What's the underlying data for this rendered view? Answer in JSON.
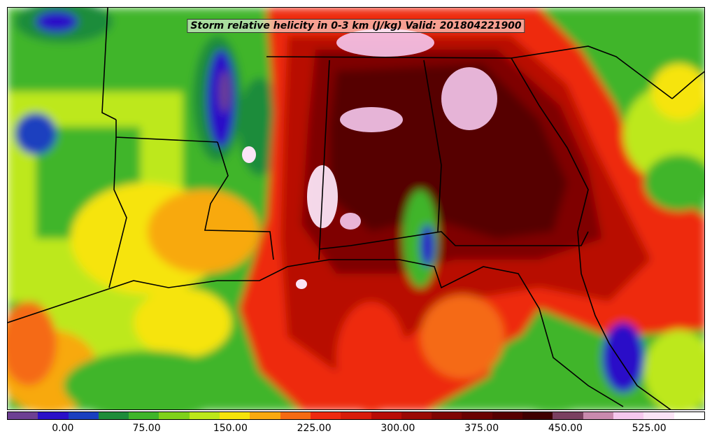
{
  "title": "Storm relative helicity in 0-3 km (J/kg) Valid: 201804221900",
  "colorbar": {
    "colors": [
      "#6d3f93",
      "#2a10c8",
      "#1a3fbf",
      "#1e8c3a",
      "#3fb52a",
      "#7fd11a",
      "#bde81a",
      "#f6e40a",
      "#f8a90f",
      "#f56a12",
      "#ee2a10",
      "#d81c0a",
      "#b80d06",
      "#9a0a05",
      "#7f0503",
      "#6a0202",
      "#560000",
      "#3f0000",
      "#7a4060",
      "#c98aae",
      "#f6c8ee",
      "#fbe4f6",
      "#ffffff"
    ],
    "tick_labels": [
      "0.00",
      "75.00",
      "150.00",
      "225.00",
      "300.00",
      "375.00",
      "450.00",
      "525.00"
    ],
    "tick_values": [
      0,
      75,
      150,
      225,
      300,
      375,
      450,
      525
    ],
    "vmin": -50,
    "vmax": 575
  }
}
